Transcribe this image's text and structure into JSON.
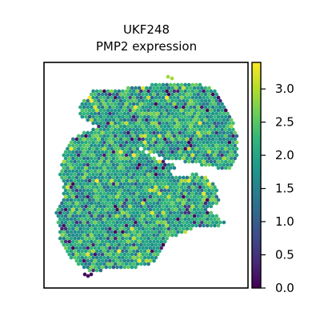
{
  "chart_data": {
    "type": "scatter",
    "title_lines": [
      "UKF248",
      "PMP2 expression"
    ],
    "xlabel": "",
    "ylabel": "",
    "grid": false,
    "legend": "none",
    "colorbar": {
      "colormap": "viridis",
      "min": 0.0,
      "max": 3.4,
      "ticks": [
        0.0,
        0.5,
        1.0,
        1.5,
        2.0,
        2.5,
        3.0
      ],
      "tick_labels": [
        "0.0",
        "0.5",
        "1.0",
        "1.5",
        "2.0",
        "2.5",
        "3.0"
      ],
      "placement": "right"
    },
    "spots": {
      "shape": "hexagonal spot grid",
      "value_range": [
        0.0,
        3.4
      ],
      "typical_value": 2.0
    }
  },
  "colors": {
    "frame": "#000000",
    "background": "#ffffff",
    "viridis_stops": [
      "#440154",
      "#482878",
      "#3e4a89",
      "#31688e",
      "#26828e",
      "#1f9e89",
      "#35b779",
      "#6ece58",
      "#b5de2b",
      "#fde725"
    ]
  }
}
